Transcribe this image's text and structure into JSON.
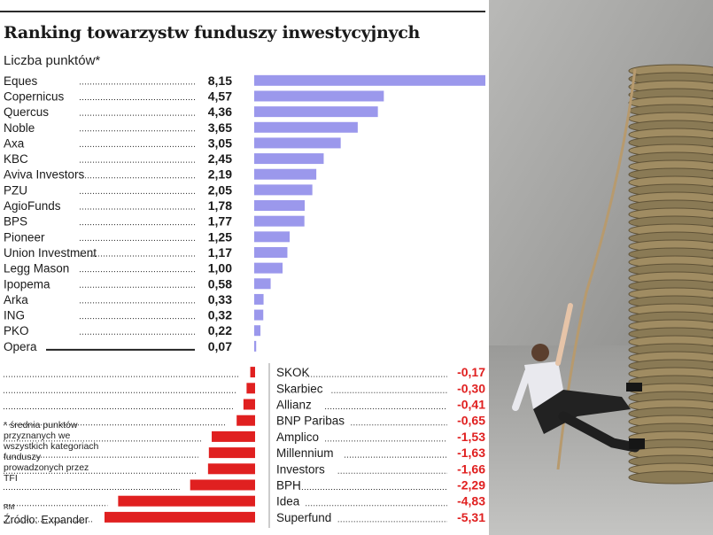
{
  "chart_data": {
    "type": "bar",
    "title": "Ranking towarzystw funduszy inwestycyjnych",
    "subtitle": "Liczba punktów*",
    "positive": {
      "color": "#9b98ec",
      "categories": [
        "Eques",
        "Copernicus",
        "Quercus",
        "Noble",
        "Axa",
        "KBC",
        "Aviva Investors",
        "PZU",
        "AgioFunds",
        "BPS",
        "Pioneer",
        "Union Investment",
        "Legg Mason",
        "Ipopema",
        "Arka",
        "ING",
        "PKO",
        "Opera"
      ],
      "values": [
        8.15,
        4.57,
        4.36,
        3.65,
        3.05,
        2.45,
        2.19,
        2.05,
        1.78,
        1.77,
        1.25,
        1.17,
        1.0,
        0.58,
        0.33,
        0.32,
        0.22,
        0.07
      ],
      "labels": [
        "8,15",
        "4,57",
        "4,36",
        "3,65",
        "3,05",
        "2,45",
        "2,19",
        "2,05",
        "1,78",
        "1,77",
        "1,25",
        "1,17",
        "1,00",
        "0,58",
        "0,33",
        "0,32",
        "0,22",
        "0,07"
      ]
    },
    "negative": {
      "color": "#e02020",
      "categories": [
        "SKOK",
        "Skarbiec",
        "Allianz",
        "BNP Paribas",
        "Amplico",
        "Millennium",
        "Investors",
        "BPH",
        "Idea",
        "Superfund"
      ],
      "values": [
        -0.17,
        -0.3,
        -0.41,
        -0.65,
        -1.53,
        -1.63,
        -1.66,
        -2.29,
        -4.83,
        -5.31
      ],
      "labels": [
        "-0,17",
        "-0,30",
        "-0,41",
        "-0,65",
        "-1,53",
        "-1,63",
        "-1,66",
        "-2,29",
        "-4,83",
        "-5,31"
      ]
    },
    "grid": false,
    "legend": "none"
  },
  "footnote": "* średnia punktów przyznanych we wszystkich kategoriach funduszy prowadzonych przez TFI",
  "rm_mark": "RM",
  "source": "Źródło: Expander",
  "photo": {
    "description_icon": "man-climbing-rope-coin-stack-icon"
  }
}
